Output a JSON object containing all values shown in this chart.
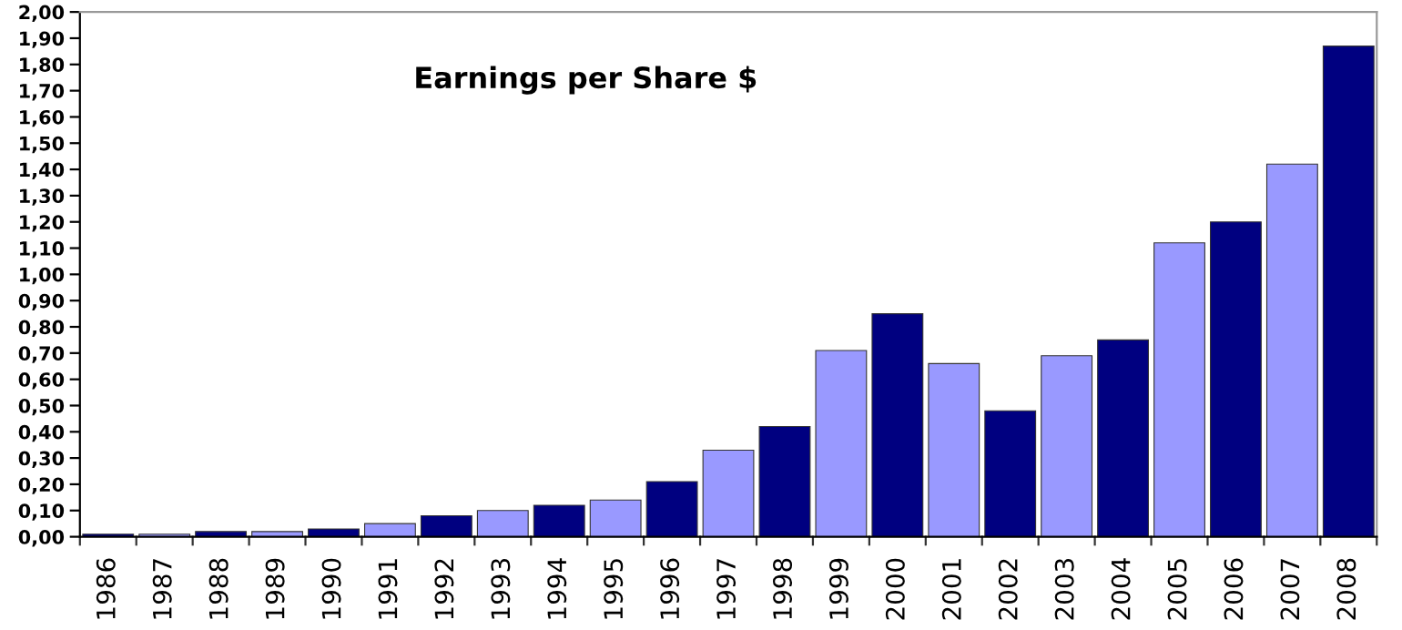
{
  "chart_data": {
    "type": "bar",
    "title": "Earnings per Share $",
    "categories": [
      "1986",
      "1987",
      "1988",
      "1989",
      "1990",
      "1991",
      "1992",
      "1993",
      "1994",
      "1995",
      "1996",
      "1997",
      "1998",
      "1999",
      "2000",
      "2001",
      "2002",
      "2003",
      "2004",
      "2005",
      "2006",
      "2007",
      "2008"
    ],
    "values": [
      0.01,
      0.01,
      0.02,
      0.02,
      0.03,
      0.05,
      0.08,
      0.1,
      0.12,
      0.14,
      0.21,
      0.33,
      0.42,
      0.71,
      0.85,
      0.66,
      0.48,
      0.69,
      0.75,
      1.12,
      1.2,
      1.42,
      1.87
    ],
    "colors": [
      "#000080",
      "#9999ff",
      "#000080",
      "#9999ff",
      "#000080",
      "#9999ff",
      "#000080",
      "#9999ff",
      "#000080",
      "#9999ff",
      "#000080",
      "#9999ff",
      "#000080",
      "#9999ff",
      "#000080",
      "#9999ff",
      "#000080",
      "#9999ff",
      "#000080",
      "#9999ff",
      "#000080",
      "#9999ff",
      "#000080"
    ],
    "ylim": [
      0,
      2.0
    ],
    "yticks": [
      {
        "value": 0,
        "label": "0,00"
      },
      {
        "value": 0.1,
        "label": "0,10"
      },
      {
        "value": 0.2,
        "label": "0,20"
      },
      {
        "value": 0.3,
        "label": "0,30"
      },
      {
        "value": 0.4,
        "label": "0,40"
      },
      {
        "value": 0.5,
        "label": "0,50"
      },
      {
        "value": 0.6,
        "label": "0,60"
      },
      {
        "value": 0.7,
        "label": "0,70"
      },
      {
        "value": 0.8,
        "label": "0,80"
      },
      {
        "value": 0.9,
        "label": "0,90"
      },
      {
        "value": 1.0,
        "label": "1,00"
      },
      {
        "value": 1.1,
        "label": "1,10"
      },
      {
        "value": 1.2,
        "label": "1,20"
      },
      {
        "value": 1.3,
        "label": "1,30"
      },
      {
        "value": 1.4,
        "label": "1,40"
      },
      {
        "value": 1.5,
        "label": "1,50"
      },
      {
        "value": 1.6,
        "label": "1,60"
      },
      {
        "value": 1.7,
        "label": "1,70"
      },
      {
        "value": 1.8,
        "label": "1,80"
      },
      {
        "value": 1.9,
        "label": "1,90"
      },
      {
        "value": 2.0,
        "label": "2,00"
      }
    ],
    "grid": false,
    "legend": false
  }
}
